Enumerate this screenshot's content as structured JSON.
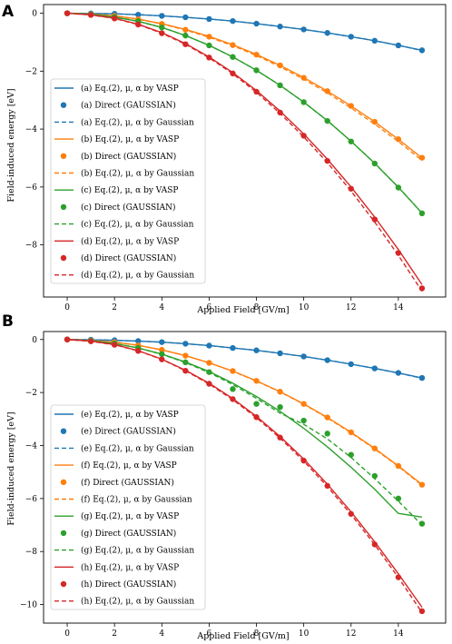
{
  "colors": {
    "blue": "#1f77b4",
    "orange": "#ff7f0e",
    "green": "#2ca02c",
    "red": "#d62728"
  },
  "chart_data": [
    {
      "panel": "A",
      "type": "line",
      "xlabel": "Applied Field [GV/m]",
      "ylabel": "Field-induced energy [eV]",
      "xlim": [
        -1,
        16
      ],
      "ylim": [
        -9.8,
        0.3
      ],
      "xticks": [
        0,
        2,
        4,
        6,
        8,
        10,
        12,
        14
      ],
      "yticks": [
        0,
        -2,
        -4,
        -6,
        -8
      ],
      "legend_position": "lower-left",
      "x": [
        0,
        1,
        2,
        3,
        4,
        5,
        6,
        7,
        8,
        9,
        10,
        11,
        12,
        13,
        14,
        15
      ],
      "series": [
        {
          "name": "(a) Eq.(2), μ, α by VASP",
          "style": "solid",
          "color": "blue",
          "values": [
            0,
            -0.01,
            -0.02,
            -0.05,
            -0.09,
            -0.14,
            -0.2,
            -0.27,
            -0.36,
            -0.46,
            -0.56,
            -0.68,
            -0.81,
            -0.95,
            -1.11,
            -1.28
          ]
        },
        {
          "name": "(a) Direct (GAUSSIAN)",
          "style": "marker",
          "color": "blue",
          "values": [
            0,
            -0.01,
            -0.02,
            -0.05,
            -0.09,
            -0.14,
            -0.2,
            -0.27,
            -0.36,
            -0.46,
            -0.56,
            -0.68,
            -0.81,
            -0.95,
            -1.11,
            -1.28
          ]
        },
        {
          "name": "(a) Eq.(2), μ, α by Gaussian",
          "style": "dashed",
          "color": "blue",
          "values": [
            0,
            -0.01,
            -0.02,
            -0.05,
            -0.09,
            -0.14,
            -0.2,
            -0.27,
            -0.36,
            -0.46,
            -0.56,
            -0.68,
            -0.81,
            -0.95,
            -1.11,
            -1.29
          ]
        },
        {
          "name": "(b) Eq.(2), μ, α by VASP",
          "style": "solid",
          "color": "orange",
          "values": [
            0,
            -0.03,
            -0.09,
            -0.2,
            -0.36,
            -0.56,
            -0.8,
            -1.09,
            -1.42,
            -1.8,
            -2.22,
            -2.69,
            -3.2,
            -3.75,
            -4.35,
            -5.0
          ]
        },
        {
          "name": "(b) Direct (GAUSSIAN)",
          "style": "marker",
          "color": "orange",
          "values": [
            0,
            -0.03,
            -0.09,
            -0.21,
            -0.37,
            -0.57,
            -0.81,
            -1.1,
            -1.43,
            -1.8,
            -2.23,
            -2.69,
            -3.2,
            -3.75,
            -4.35,
            -4.99
          ]
        },
        {
          "name": "(b) Eq.(2), μ, α by Gaussian",
          "style": "dashed",
          "color": "orange",
          "values": [
            0,
            -0.03,
            -0.09,
            -0.21,
            -0.37,
            -0.58,
            -0.83,
            -1.12,
            -1.46,
            -1.85,
            -2.28,
            -2.75,
            -3.27,
            -3.83,
            -4.43,
            -5.08
          ]
        },
        {
          "name": "(c) Eq.(2), μ, α by VASP",
          "style": "solid",
          "color": "green",
          "values": [
            0,
            -0.04,
            -0.13,
            -0.28,
            -0.49,
            -0.77,
            -1.11,
            -1.51,
            -1.97,
            -2.49,
            -3.07,
            -3.71,
            -4.42,
            -5.18,
            -6.01,
            -6.9
          ]
        },
        {
          "name": "(c) Direct (GAUSSIAN)",
          "style": "marker",
          "color": "green",
          "values": [
            0,
            -0.04,
            -0.13,
            -0.28,
            -0.49,
            -0.77,
            -1.11,
            -1.51,
            -1.97,
            -2.49,
            -3.07,
            -3.72,
            -4.43,
            -5.19,
            -6.02,
            -6.91
          ]
        },
        {
          "name": "(c) Eq.(2), μ, α by Gaussian",
          "style": "dashed",
          "color": "green",
          "values": [
            0,
            -0.04,
            -0.13,
            -0.28,
            -0.49,
            -0.77,
            -1.11,
            -1.51,
            -1.97,
            -2.49,
            -3.07,
            -3.71,
            -4.42,
            -5.18,
            -6.01,
            -6.9
          ]
        },
        {
          "name": "(d) Eq.(2), μ, α by VASP",
          "style": "solid",
          "color": "red",
          "values": [
            0,
            -0.06,
            -0.17,
            -0.38,
            -0.67,
            -1.05,
            -1.51,
            -2.05,
            -2.67,
            -3.38,
            -4.17,
            -5.04,
            -6.0,
            -7.04,
            -8.16,
            -9.37
          ]
        },
        {
          "name": "(d) Direct (GAUSSIAN)",
          "style": "marker",
          "color": "red",
          "values": [
            0,
            -0.06,
            -0.18,
            -0.39,
            -0.69,
            -1.07,
            -1.53,
            -2.08,
            -2.71,
            -3.43,
            -4.23,
            -5.1,
            -6.06,
            -7.12,
            -8.28,
            -9.5
          ]
        },
        {
          "name": "(d) Eq.(2), μ, α by Gaussian",
          "style": "dashed",
          "color": "red",
          "values": [
            0,
            -0.06,
            -0.18,
            -0.39,
            -0.69,
            -1.07,
            -1.54,
            -2.09,
            -2.73,
            -3.46,
            -4.27,
            -5.16,
            -6.14,
            -7.21,
            -8.36,
            -9.6
          ]
        }
      ]
    },
    {
      "panel": "B",
      "type": "line",
      "xlabel": "Applied Field [GV/m]",
      "ylabel": "Field-induced energy [eV]",
      "xlim": [
        -1,
        16
      ],
      "ylim": [
        -10.7,
        0.3
      ],
      "xticks": [
        0,
        2,
        4,
        6,
        8,
        10,
        12,
        14
      ],
      "yticks": [
        0,
        -2,
        -4,
        -6,
        -8,
        -10
      ],
      "legend_position": "lower-left",
      "x": [
        0,
        1,
        2,
        3,
        4,
        5,
        6,
        7,
        8,
        9,
        10,
        11,
        12,
        13,
        14,
        15
      ],
      "series": [
        {
          "name": "(e) Eq.(2), μ, α by VASP",
          "style": "solid",
          "color": "blue",
          "values": [
            0,
            -0.01,
            -0.03,
            -0.06,
            -0.1,
            -0.16,
            -0.23,
            -0.32,
            -0.41,
            -0.52,
            -0.64,
            -0.78,
            -0.93,
            -1.09,
            -1.26,
            -1.45
          ]
        },
        {
          "name": "(e) Direct (GAUSSIAN)",
          "style": "marker",
          "color": "blue",
          "values": [
            0,
            -0.01,
            -0.03,
            -0.06,
            -0.1,
            -0.16,
            -0.23,
            -0.32,
            -0.41,
            -0.52,
            -0.64,
            -0.78,
            -0.93,
            -1.09,
            -1.26,
            -1.45
          ]
        },
        {
          "name": "(e) Eq.(2), μ, α by Gaussian",
          "style": "dashed",
          "color": "blue",
          "values": [
            0,
            -0.01,
            -0.03,
            -0.06,
            -0.1,
            -0.16,
            -0.23,
            -0.32,
            -0.41,
            -0.52,
            -0.64,
            -0.78,
            -0.93,
            -1.09,
            -1.27,
            -1.46
          ]
        },
        {
          "name": "(f) Eq.(2), μ, α by VASP",
          "style": "solid",
          "color": "orange",
          "values": [
            0,
            -0.04,
            -0.1,
            -0.22,
            -0.39,
            -0.61,
            -0.88,
            -1.19,
            -1.56,
            -1.97,
            -2.43,
            -2.94,
            -3.5,
            -4.11,
            -4.77,
            -5.47
          ]
        },
        {
          "name": "(f) Direct (GAUSSIAN)",
          "style": "marker",
          "color": "orange",
          "values": [
            0,
            -0.04,
            -0.1,
            -0.22,
            -0.39,
            -0.61,
            -0.88,
            -1.19,
            -1.56,
            -1.97,
            -2.43,
            -2.94,
            -3.5,
            -4.11,
            -4.77,
            -5.48
          ]
        },
        {
          "name": "(f) Eq.(2), μ, α by Gaussian",
          "style": "dashed",
          "color": "orange",
          "values": [
            0,
            -0.04,
            -0.1,
            -0.22,
            -0.39,
            -0.61,
            -0.88,
            -1.2,
            -1.57,
            -1.98,
            -2.44,
            -2.96,
            -3.52,
            -4.13,
            -4.79,
            -5.5
          ]
        },
        {
          "name": "(g) Eq.(2), μ, α by VASP",
          "style": "solid",
          "color": "green",
          "values": [
            0,
            -0.05,
            -0.15,
            -0.32,
            -0.55,
            -0.85,
            -1.21,
            -1.65,
            -2.15,
            -2.71,
            -3.35,
            -4.05,
            -4.82,
            -5.65,
            -6.56,
            -6.7
          ]
        },
        {
          "name": "(g) Direct (GAUSSIAN)",
          "style": "marker",
          "color": "green",
          "values": [
            0,
            -0.05,
            -0.15,
            -0.32,
            -0.55,
            -0.86,
            -1.23,
            -1.87,
            -2.43,
            -2.55,
            -3.06,
            -3.55,
            -4.35,
            -5.15,
            -6.0,
            -6.95
          ]
        },
        {
          "name": "(g) Eq.(2), μ, α by Gaussian",
          "style": "dashed",
          "color": "green",
          "values": [
            0,
            -0.05,
            -0.15,
            -0.32,
            -0.56,
            -0.87,
            -1.25,
            -1.7,
            -2.22,
            -2.78,
            -3.2,
            -3.75,
            -4.45,
            -5.25,
            -6.1,
            -7.0
          ]
        },
        {
          "name": "(h) Eq.(2), μ, α by VASP",
          "style": "solid",
          "color": "red",
          "values": [
            0,
            -0.06,
            -0.19,
            -0.42,
            -0.74,
            -1.16,
            -1.65,
            -2.23,
            -2.9,
            -3.66,
            -4.51,
            -5.46,
            -6.5,
            -7.63,
            -8.84,
            -10.1
          ]
        },
        {
          "name": "(h) Direct (GAUSSIAN)",
          "style": "marker",
          "color": "red",
          "values": [
            0,
            -0.07,
            -0.2,
            -0.43,
            -0.75,
            -1.18,
            -1.67,
            -2.25,
            -2.93,
            -3.7,
            -4.57,
            -5.52,
            -6.58,
            -7.73,
            -8.97,
            -10.25
          ]
        },
        {
          "name": "(h) Eq.(2), μ, α by Gaussian",
          "style": "dashed",
          "color": "red",
          "values": [
            0,
            -0.07,
            -0.2,
            -0.43,
            -0.75,
            -1.18,
            -1.68,
            -2.27,
            -2.95,
            -3.72,
            -4.59,
            -5.55,
            -6.6,
            -7.74,
            -8.98,
            -10.3
          ]
        }
      ]
    }
  ]
}
